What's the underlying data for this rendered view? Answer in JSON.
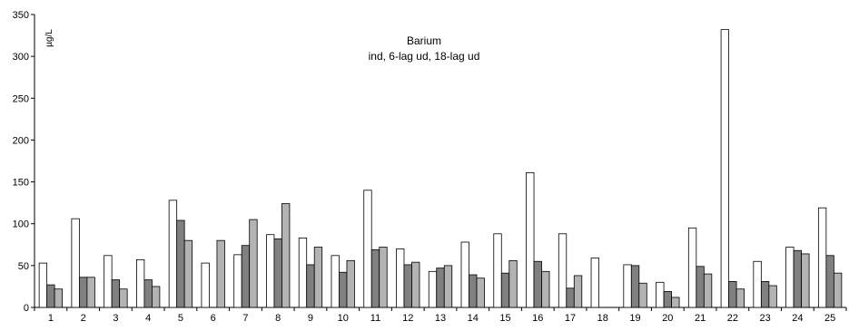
{
  "chart_data": {
    "type": "bar",
    "title": "Barium",
    "subtitle": "ind, 6-lag ud, 18-lag ud",
    "xlabel": "",
    "ylabel": "µg/L",
    "ylim": [
      0,
      350
    ],
    "yticks": [
      0,
      50,
      100,
      150,
      200,
      250,
      300,
      350
    ],
    "grid": false,
    "legend": "none",
    "categories": [
      "1",
      "2",
      "3",
      "4",
      "5",
      "6",
      "7",
      "8",
      "9",
      "10",
      "11",
      "12",
      "13",
      "14",
      "15",
      "16",
      "17",
      "18",
      "19",
      "20",
      "21",
      "22",
      "23",
      "24",
      "25"
    ],
    "series": [
      {
        "color": "#ffffff",
        "values": [
          53,
          106,
          62,
          57,
          128,
          53,
          63,
          87,
          83,
          62,
          140,
          70,
          43,
          78,
          88,
          161,
          88,
          59,
          51,
          30,
          95,
          332,
          55,
          72,
          119
        ]
      },
      {
        "color": "#808080",
        "values": [
          27,
          36,
          33,
          33,
          104,
          0,
          74,
          82,
          51,
          42,
          69,
          51,
          47,
          39,
          41,
          55,
          23,
          0,
          50,
          19,
          49,
          31,
          31,
          68,
          62
        ]
      },
      {
        "color": "#b3b3b3",
        "values": [
          22,
          36,
          22,
          25,
          80,
          80,
          105,
          124,
          72,
          56,
          72,
          54,
          50,
          35,
          56,
          43,
          38,
          0,
          29,
          12,
          40,
          22,
          26,
          64,
          41
        ]
      }
    ]
  }
}
